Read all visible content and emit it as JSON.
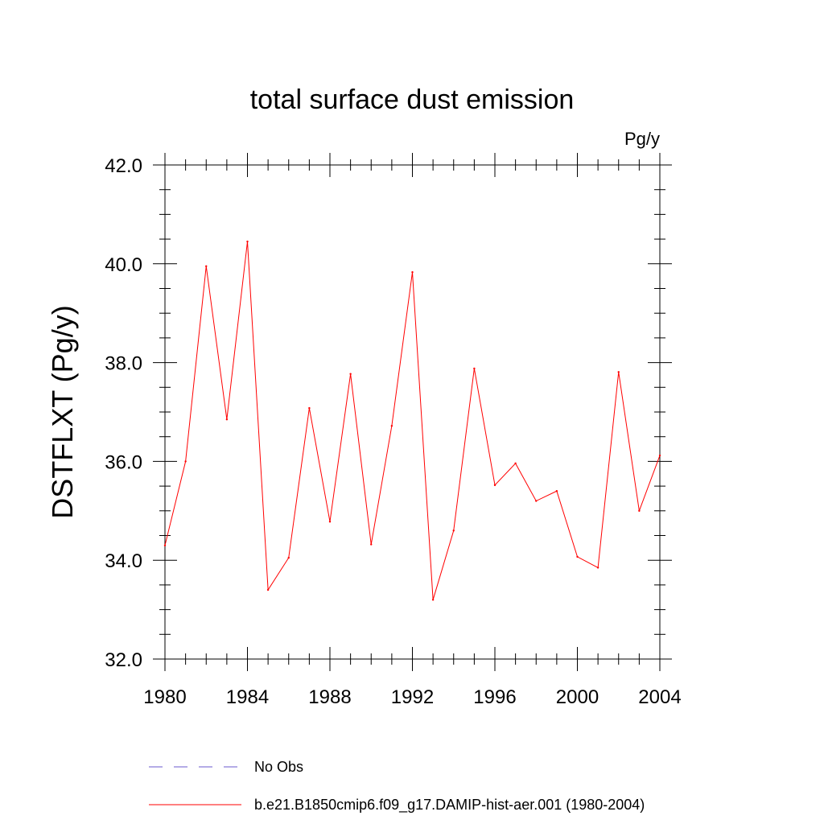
{
  "chart_data": {
    "type": "line",
    "title": "total surface dust emission",
    "units": "Pg/y",
    "xlabel": "",
    "ylabel": "DSTFLXT  (Pg/y)",
    "xlim": [
      1980,
      2004
    ],
    "ylim": [
      32.0,
      42.0
    ],
    "x_ticks": [
      1980,
      1984,
      1988,
      1992,
      1996,
      2000,
      2004
    ],
    "x_tick_labels": [
      "1980",
      "1984",
      "1988",
      "1992",
      "1996",
      "2000",
      "2004"
    ],
    "y_ticks": [
      32.0,
      34.0,
      36.0,
      38.0,
      40.0,
      42.0
    ],
    "y_tick_labels": [
      "32.0",
      "34.0",
      "36.0",
      "38.0",
      "40.0",
      "42.0"
    ],
    "x_minor_step": 1,
    "y_minor_step": 0.5,
    "grid": false,
    "legend_position": "bottom",
    "x": [
      1980,
      1981,
      1982,
      1983,
      1984,
      1985,
      1986,
      1987,
      1988,
      1989,
      1990,
      1991,
      1992,
      1993,
      1994,
      1995,
      1996,
      1997,
      1998,
      1999,
      2000,
      2001,
      2002,
      2003,
      2004
    ],
    "series": [
      {
        "name": "b.e21.B1850cmip6.f09_g17.DAMIP-hist-aer.001 (1980-2004)",
        "color": "#ff0000",
        "dash": "solid",
        "values": [
          34.3,
          36.0,
          39.95,
          36.85,
          40.45,
          33.4,
          34.05,
          37.08,
          34.78,
          37.77,
          34.32,
          36.72,
          39.83,
          33.2,
          34.6,
          37.88,
          35.52,
          35.96,
          35.2,
          35.4,
          34.07,
          33.85,
          37.81,
          35.0,
          36.12
        ]
      }
    ],
    "legend": [
      {
        "label": "No Obs",
        "color": "#6a5acd",
        "dash": "dashed"
      },
      {
        "label": "b.e21.B1850cmip6.f09_g17.DAMIP-hist-aer.001 (1980-2004)",
        "color": "#ff0000",
        "dash": "solid"
      }
    ]
  }
}
